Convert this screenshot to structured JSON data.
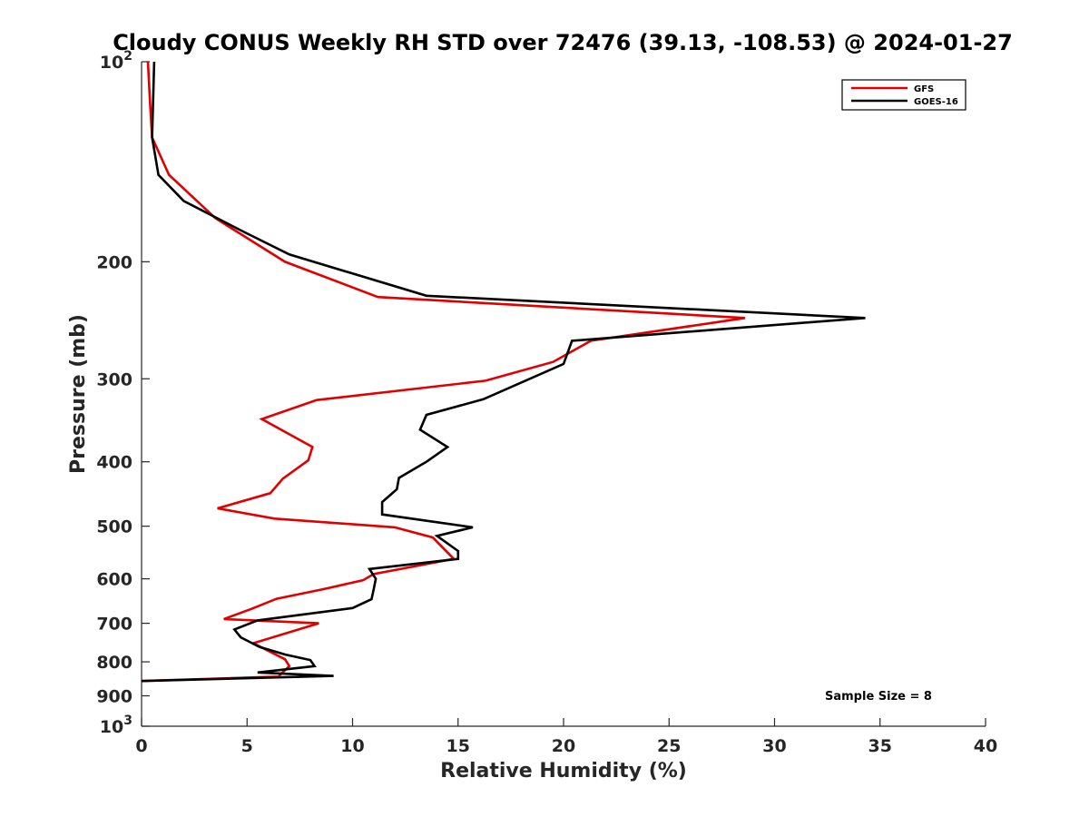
{
  "chart_data": {
    "type": "line",
    "title": "Cloudy CONUS Weekly RH STD over 72476 (39.13, -108.53) @ 2024-01-27",
    "xlabel": "Relative Humidity (%)",
    "ylabel": "Pressure (mb)",
    "xlim": [
      0,
      40
    ],
    "ylim": [
      100,
      1000
    ],
    "y_scale": "log",
    "y_reversed": true,
    "grid": false,
    "legend_position": "top-right",
    "x_ticks": [
      "0",
      "5",
      "10",
      "15",
      "20",
      "25",
      "30",
      "35",
      "40"
    ],
    "y_ticks": [
      {
        "value": 100,
        "base": "10",
        "exp": "2"
      },
      {
        "value": 200,
        "label": "200"
      },
      {
        "value": 300,
        "label": "300"
      },
      {
        "value": 400,
        "label": "400"
      },
      {
        "value": 500,
        "label": "500"
      },
      {
        "value": 600,
        "label": "600"
      },
      {
        "value": 700,
        "label": "700"
      },
      {
        "value": 800,
        "label": "800"
      },
      {
        "value": 900,
        "label": "900"
      },
      {
        "value": 1000,
        "base": "10",
        "exp": "3"
      }
    ],
    "annotation": "Sample Size = 8",
    "series": [
      {
        "name": "GFS",
        "color": "#e00000",
        "points": [
          [
            0.3,
            100
          ],
          [
            0.4,
            115
          ],
          [
            0.5,
            130
          ],
          [
            1.3,
            148
          ],
          [
            3.5,
            172
          ],
          [
            6.8,
            200
          ],
          [
            11.2,
            226
          ],
          [
            28.6,
            243
          ],
          [
            21.3,
            263
          ],
          [
            19.5,
            283
          ],
          [
            16.3,
            302
          ],
          [
            8.3,
            323
          ],
          [
            5.7,
            345
          ],
          [
            8.1,
            380
          ],
          [
            7.9,
            398
          ],
          [
            6.7,
            424
          ],
          [
            6.1,
            446
          ],
          [
            3.6,
            470
          ],
          [
            6.3,
            487
          ],
          [
            12.0,
            502
          ],
          [
            13.8,
            520
          ],
          [
            14.8,
            560
          ],
          [
            11.0,
            590
          ],
          [
            10.5,
            603
          ],
          [
            8.6,
            622
          ],
          [
            6.4,
            643
          ],
          [
            5.2,
            666
          ],
          [
            3.9,
            690
          ],
          [
            8.4,
            700
          ],
          [
            5.3,
            750
          ],
          [
            6.8,
            793
          ],
          [
            7.0,
            812
          ],
          [
            6.6,
            835
          ],
          [
            6.5,
            842
          ],
          [
            0.0,
            855
          ]
        ]
      },
      {
        "name": "GOES-16",
        "color": "#000000",
        "points": [
          [
            0.6,
            100
          ],
          [
            0.5,
            130
          ],
          [
            0.8,
            148
          ],
          [
            2.0,
            162
          ],
          [
            4.8,
            180
          ],
          [
            7.0,
            195
          ],
          [
            13.5,
            225
          ],
          [
            34.3,
            243
          ],
          [
            20.4,
            263
          ],
          [
            20.0,
            285
          ],
          [
            16.2,
            322
          ],
          [
            13.5,
            340
          ],
          [
            13.2,
            358
          ],
          [
            14.5,
            380
          ],
          [
            13.5,
            400
          ],
          [
            12.2,
            423
          ],
          [
            12.1,
            440
          ],
          [
            11.4,
            460
          ],
          [
            11.4,
            480
          ],
          [
            15.7,
            502
          ],
          [
            14.0,
            517
          ],
          [
            15.0,
            545
          ],
          [
            15.0,
            560
          ],
          [
            10.8,
            580
          ],
          [
            11.1,
            600
          ],
          [
            11.0,
            622
          ],
          [
            10.9,
            644
          ],
          [
            10.0,
            664
          ],
          [
            5.5,
            693
          ],
          [
            4.4,
            715
          ],
          [
            4.7,
            735
          ],
          [
            5.6,
            760
          ],
          [
            6.8,
            780
          ],
          [
            8.0,
            795
          ],
          [
            8.2,
            812
          ],
          [
            5.5,
            830
          ],
          [
            9.1,
            840
          ],
          [
            0.0,
            855
          ]
        ]
      }
    ]
  }
}
